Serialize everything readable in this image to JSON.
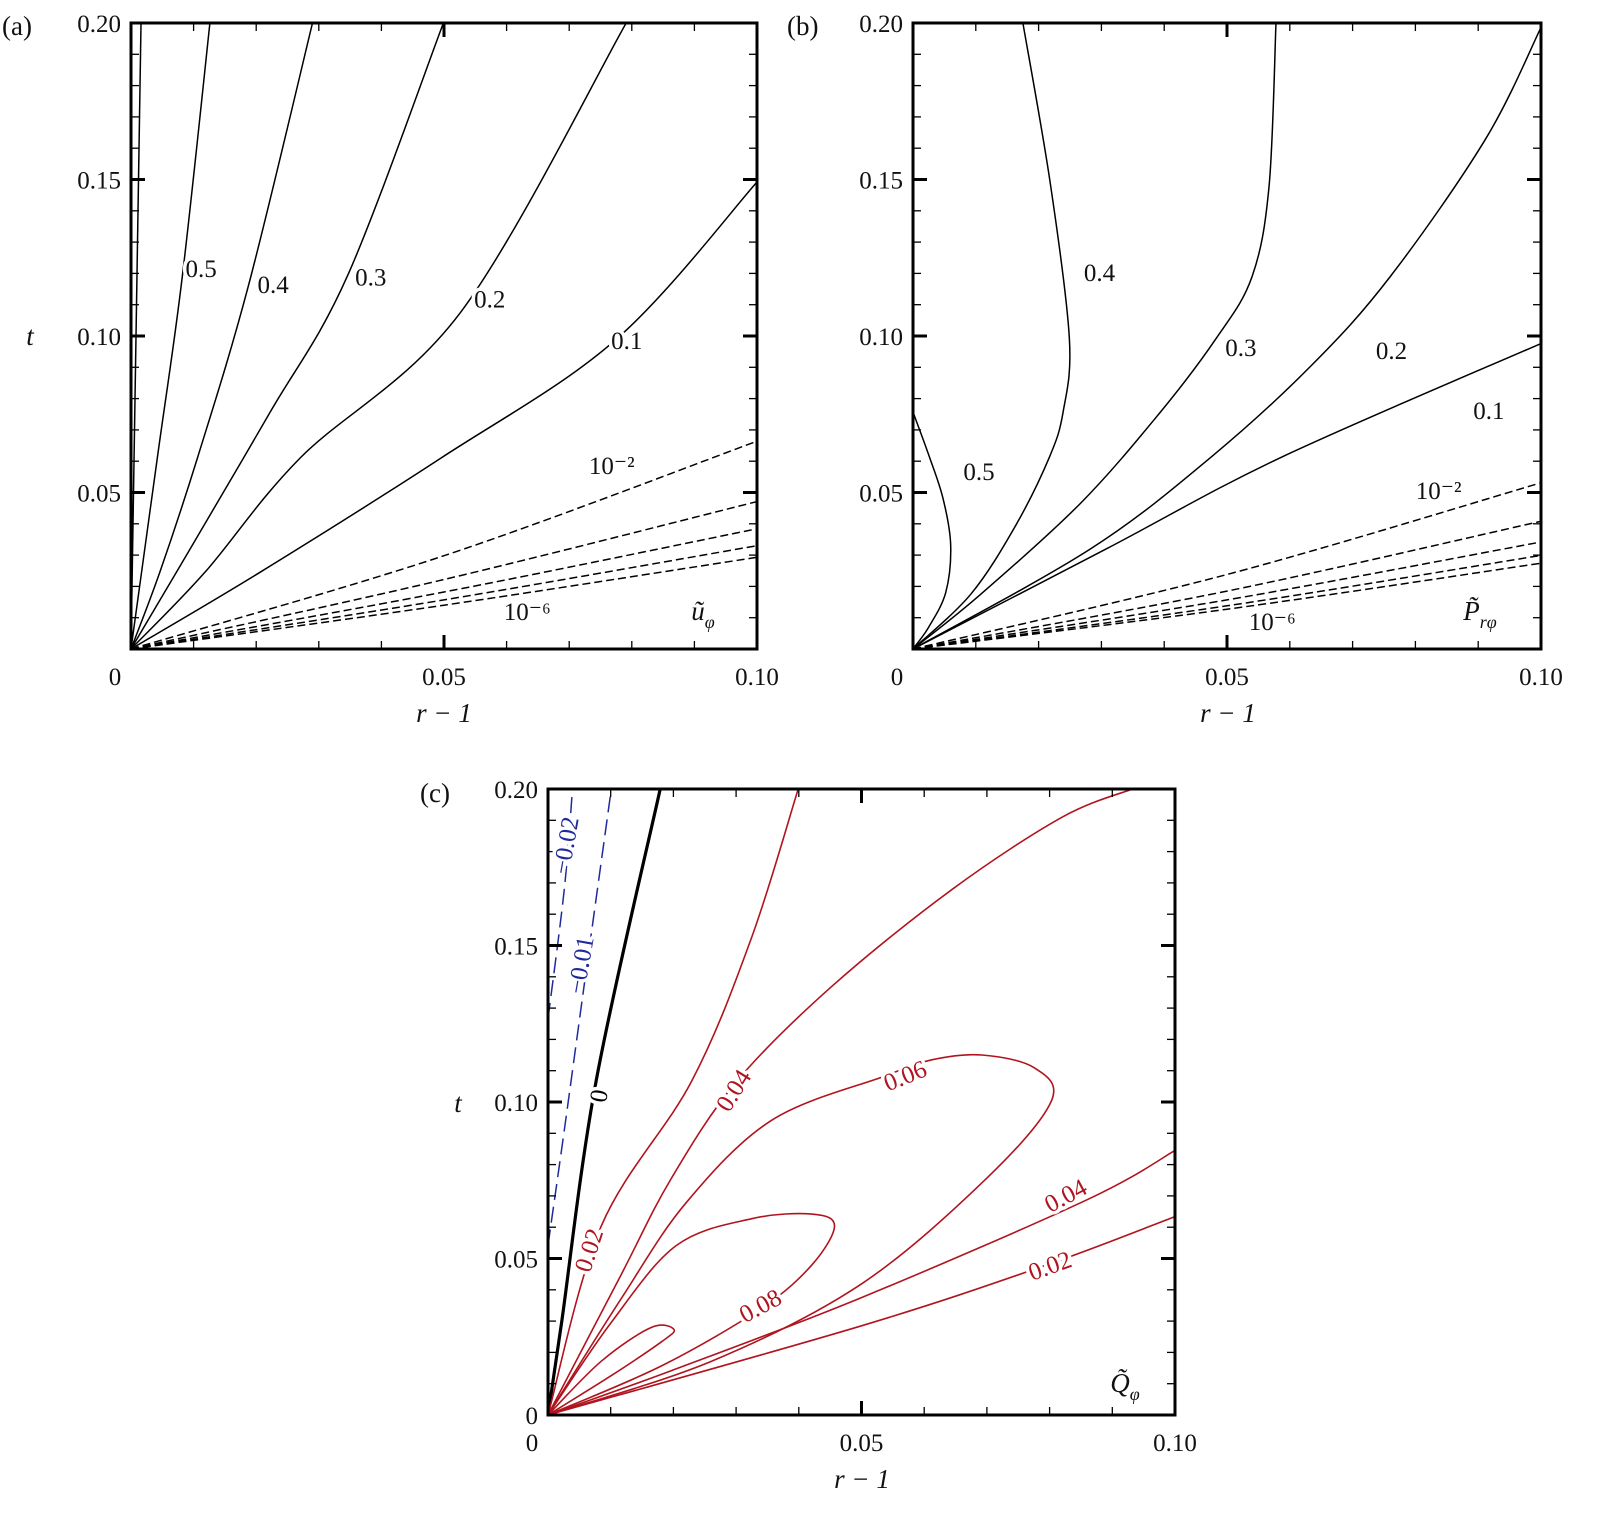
{
  "chart_data": [
    {
      "type": "contour",
      "panel": "(a)",
      "field_label": {
        "base": "ũ",
        "sub": "φ"
      },
      "xlabel": "r − 1",
      "ylabel": "t",
      "xlim": [
        0,
        0.1
      ],
      "ylim": [
        0,
        0.2
      ],
      "xticks": [
        0,
        0.05,
        0.1
      ],
      "xtick_labels": [
        "0",
        "0.05",
        "0.10"
      ],
      "yticks": [
        0.05,
        0.1,
        0.15,
        0.2
      ],
      "ytick_labels": [
        "0.05",
        "0.10",
        "0.15",
        "0.20"
      ],
      "line_color": "#000000",
      "contours": [
        {
          "style": "solid",
          "points": [
            [
              0,
              0
            ],
            [
              0.0016,
              0.2
            ]
          ]
        },
        {
          "style": "solid",
          "points": [
            [
              0,
              0
            ],
            [
              0.0042,
              0.061
            ],
            [
              0.0082,
              0.119
            ],
            [
              0.0126,
              0.2
            ]
          ]
        },
        {
          "style": "solid",
          "points": [
            [
              0,
              0
            ],
            [
              0.0046,
              0.0245
            ],
            [
              0.0106,
              0.061
            ],
            [
              0.0188,
              0.1164
            ],
            [
              0.029,
              0.2
            ]
          ]
        },
        {
          "style": "solid",
          "points": [
            [
              0,
              0
            ],
            [
              0.0094,
              0.0318
            ],
            [
              0.0222,
              0.0756
            ],
            [
              0.0346,
              0.1193
            ],
            [
              0.0499,
              0.2
            ]
          ]
        },
        {
          "style": "solid",
          "points": [
            [
              0,
              0
            ],
            [
              0.0118,
              0.0245
            ],
            [
              0.027,
              0.061
            ],
            [
              0.0527,
              0.1077
            ],
            [
              0.0791,
              0.2
            ]
          ]
        },
        {
          "style": "solid",
          "points": [
            [
              0,
              0
            ],
            [
              0.0206,
              0.0245
            ],
            [
              0.0495,
              0.061
            ],
            [
              0.0775,
              0.0989
            ],
            [
              0.1,
              0.1492
            ]
          ]
        },
        {
          "style": "dashed",
          "points": [
            [
              0,
              0
            ],
            [
              0.05,
              0.0298
            ],
            [
              0.1,
              0.0664
            ]
          ]
        },
        {
          "style": "dashed",
          "points": [
            [
              0,
              0
            ],
            [
              0.05,
              0.0222
            ],
            [
              0.1,
              0.0471
            ]
          ]
        },
        {
          "style": "dashed",
          "points": [
            [
              0,
              0
            ],
            [
              0.05,
              0.0182
            ],
            [
              0.1,
              0.0384
            ]
          ]
        },
        {
          "style": "dashed",
          "points": [
            [
              0,
              0
            ],
            [
              0.05,
              0.0157
            ],
            [
              0.1,
              0.033
            ]
          ]
        },
        {
          "style": "dashed",
          "points": [
            [
              0,
              0
            ],
            [
              0.05,
              0.014
            ],
            [
              0.1,
              0.0293
            ]
          ]
        }
      ],
      "labels": [
        {
          "text": "0.5",
          "x": 0.0112,
          "t": 0.1217
        },
        {
          "text": "0.4",
          "x": 0.0227,
          "t": 0.1166
        },
        {
          "text": "0.3",
          "x": 0.0383,
          "t": 0.119
        },
        {
          "text": "0.2",
          "x": 0.0573,
          "t": 0.112
        },
        {
          "text": "0.1",
          "x": 0.0792,
          "t": 0.0987
        },
        {
          "text": "10⁻²",
          "x": 0.0768,
          "t": 0.0588
        },
        {
          "text": "10⁻⁶",
          "x": 0.0633,
          "t": 0.0121
        }
      ]
    },
    {
      "type": "contour",
      "panel": "(b)",
      "field_label": {
        "base": "P̃",
        "sub": "rφ"
      },
      "xlabel": "r − 1",
      "ylabel": "",
      "xlim": [
        0,
        0.1
      ],
      "ylim": [
        0,
        0.2
      ],
      "xticks": [
        0,
        0.05,
        0.1
      ],
      "xtick_labels": [
        "0",
        "0.05",
        "0.10"
      ],
      "yticks": [
        0.05,
        0.1,
        0.15,
        0.2
      ],
      "ytick_labels": [
        "0.05",
        "0.10",
        "0.15",
        "0.20"
      ],
      "line_color": "#000000",
      "contours": [
        {
          "style": "solid",
          "points": [
            [
              0,
              0.0757
            ],
            [
              0.0025,
              0.062
            ],
            [
              0.0048,
              0.048
            ],
            [
              0.006,
              0.033
            ],
            [
              0.0052,
              0.018
            ],
            [
              0.0025,
              0.007
            ],
            [
              0,
              0
            ]
          ]
        },
        {
          "style": "solid",
          "points": [
            [
              0,
              0
            ],
            [
              0.0092,
              0.0175
            ],
            [
              0.0163,
              0.0393
            ],
            [
              0.0217,
              0.0612
            ],
            [
              0.0239,
              0.0757
            ],
            [
              0.0249,
              0.099
            ],
            [
              0.0219,
              0.1483
            ],
            [
              0.0175,
              0.2
            ]
          ]
        },
        {
          "style": "solid",
          "points": [
            [
              0,
              0
            ],
            [
              0.0108,
              0.0175
            ],
            [
              0.0267,
              0.0466
            ],
            [
              0.0394,
              0.0757
            ],
            [
              0.0482,
              0.099
            ],
            [
              0.054,
              0.119
            ],
            [
              0.0567,
              0.148
            ],
            [
              0.0578,
              0.2
            ]
          ]
        },
        {
          "style": "solid",
          "points": [
            [
              0,
              0
            ],
            [
              0.0283,
              0.032
            ],
            [
              0.0474,
              0.0612
            ],
            [
              0.0633,
              0.0903
            ],
            [
              0.076,
              0.119
            ],
            [
              0.0912,
              0.163
            ],
            [
              0.1,
              0.1986
            ]
          ]
        },
        {
          "style": "solid",
          "points": [
            [
              0,
              0
            ],
            [
              0.0308,
              0.032
            ],
            [
              0.0586,
              0.0612
            ],
            [
              0.1,
              0.0976
            ]
          ]
        },
        {
          "style": "dashed",
          "points": [
            [
              0,
              0
            ],
            [
              0.05,
              0.0238
            ],
            [
              0.1,
              0.0531
            ]
          ]
        },
        {
          "style": "dashed",
          "points": [
            [
              0,
              0
            ],
            [
              0.05,
              0.0185
            ],
            [
              0.1,
              0.0408
            ]
          ]
        },
        {
          "style": "dashed",
          "points": [
            [
              0,
              0
            ],
            [
              0.05,
              0.0157
            ],
            [
              0.1,
              0.0342
            ]
          ]
        },
        {
          "style": "dashed",
          "points": [
            [
              0,
              0
            ],
            [
              0.05,
              0.0138
            ],
            [
              0.1,
              0.0299
            ]
          ]
        },
        {
          "style": "dashed",
          "points": [
            [
              0,
              0
            ],
            [
              0.05,
              0.0127
            ],
            [
              0.1,
              0.0274
            ]
          ]
        }
      ],
      "labels": [
        {
          "text": "0.5",
          "x": 0.0105,
          "t": 0.0569
        },
        {
          "text": "0.4",
          "x": 0.0297,
          "t": 0.1204
        },
        {
          "text": "0.3",
          "x": 0.0522,
          "t": 0.0965
        },
        {
          "text": "0.2",
          "x": 0.0762,
          "t": 0.0955
        },
        {
          "text": "0.1",
          "x": 0.0917,
          "t": 0.0764
        },
        {
          "text": "10⁻²",
          "x": 0.0837,
          "t": 0.0508
        },
        {
          "text": "10⁻⁶",
          "x": 0.0572,
          "t": 0.0089
        }
      ]
    },
    {
      "type": "contour",
      "panel": "(c)",
      "field_label": {
        "base": "Q̃",
        "sub": "φ"
      },
      "xlabel": "r − 1",
      "ylabel": "t",
      "xlim": [
        0,
        0.1
      ],
      "ylim": [
        0,
        0.2
      ],
      "xticks": [
        0,
        0.05,
        0.1
      ],
      "xtick_labels": [
        "0",
        "0.05",
        "0.10"
      ],
      "yticks": [
        0,
        0.05,
        0.1,
        0.15,
        0.2
      ],
      "ytick_labels": [
        "0",
        "0.05",
        "0.10",
        "0.15",
        "0.20"
      ],
      "positive_color": "#b0141e",
      "negative_color": "#1f2a9c",
      "zero_color": "#000000",
      "contours": [
        {
          "sign": "negative",
          "style": "dashed",
          "points": [
            [
              0,
              0.1266
            ],
            [
              0.0026,
              0.168
            ],
            [
              0.0039,
              0.2
            ]
          ]
        },
        {
          "sign": "negative",
          "style": "dashed",
          "points": [
            [
              0,
              0.0542
            ],
            [
              0.0026,
              0.091
            ],
            [
              0.0065,
              0.148
            ],
            [
              0.0101,
              0.2
            ]
          ]
        },
        {
          "sign": "zero",
          "style": "bold",
          "points": [
            [
              0,
              0
            ],
            [
              0.0022,
              0.03
            ],
            [
              0.0077,
              0.107
            ],
            [
              0.0179,
              0.2
            ]
          ]
        },
        {
          "sign": "positive",
          "style": "solid",
          "points": [
            [
              0,
              0
            ],
            [
              0.0085,
              0.0604
            ],
            [
              0.0229,
              0.1066
            ],
            [
              0.0325,
              0.1527
            ],
            [
              0.0399,
              0.2
            ]
          ]
        },
        {
          "sign": "positive",
          "style": "solid",
          "points": [
            [
              0,
              0
            ],
            [
              0.0117,
              0.045
            ],
            [
              0.0197,
              0.0757
            ],
            [
              0.0301,
              0.1066
            ],
            [
              0.0453,
              0.137
            ],
            [
              0.0645,
              0.168
            ],
            [
              0.082,
              0.191
            ],
            [
              0.0932,
              0.2
            ]
          ]
        },
        {
          "sign": "positive",
          "style": "solid",
          "points": [
            [
              0,
              0
            ],
            [
              0.0117,
              0.0373
            ],
            [
              0.0221,
              0.068
            ],
            [
              0.0357,
              0.0942
            ],
            [
              0.0533,
              0.108
            ],
            [
              0.0613,
              0.1135
            ],
            [
              0.0692,
              0.115
            ],
            [
              0.0775,
              0.111
            ],
            [
              0.0803,
              0.1004
            ],
            [
              0.07,
              0.0757
            ],
            [
              0.05,
              0.0419
            ],
            [
              0.0261,
              0.0172
            ],
            [
              0,
              0
            ]
          ]
        },
        {
          "sign": "positive",
          "style": "solid",
          "points": [
            [
              0,
              0
            ],
            [
              0.0101,
              0.0296
            ],
            [
              0.0205,
              0.0542
            ],
            [
              0.0325,
              0.0627
            ],
            [
              0.0421,
              0.0642
            ],
            [
              0.0457,
              0.0604
            ],
            [
              0.0421,
              0.048
            ],
            [
              0.0341,
              0.0342
            ],
            [
              0.0181,
              0.0157
            ],
            [
              0,
              0
            ]
          ]
        },
        {
          "sign": "positive",
          "style": "solid",
          "points": [
            [
              0,
              0
            ],
            [
              0.0085,
              0.0172
            ],
            [
              0.0165,
              0.028
            ],
            [
              0.0201,
              0.0273
            ],
            [
              0.0181,
              0.0234
            ],
            [
              0.0101,
              0.0126
            ],
            [
              0,
              0
            ]
          ]
        },
        {
          "sign": "positive",
          "style": "solid",
          "points": [
            [
              0,
              0
            ],
            [
              0.0197,
              0.0142
            ],
            [
              0.05,
              0.0375
            ],
            [
              0.086,
              0.0688
            ],
            [
              0.1,
              0.0845
            ]
          ]
        },
        {
          "sign": "positive",
          "style": "solid",
          "points": [
            [
              0,
              0
            ],
            [
              0.05,
              0.0285
            ],
            [
              0.0796,
              0.048
            ],
            [
              0.1,
              0.0634
            ]
          ]
        }
      ],
      "labels": [
        {
          "text": "0",
          "x": 0.008,
          "t": 0.102,
          "sign": "zero"
        },
        {
          "text": "−0.01",
          "x": 0.0051,
          "t": 0.1438,
          "sign": "negative"
        },
        {
          "text": "−0.02",
          "x": 0.0027,
          "t": 0.182,
          "sign": "negative"
        },
        {
          "text": "0.04",
          "x": 0.0295,
          "t": 0.1038,
          "sign": "positive"
        },
        {
          "text": "0.06",
          "x": 0.0569,
          "t": 0.1086,
          "sign": "positive"
        },
        {
          "text": "0.02",
          "x": 0.0064,
          "t": 0.0527,
          "sign": "positive"
        },
        {
          "text": "0.08",
          "x": 0.0338,
          "t": 0.0351,
          "sign": "positive"
        },
        {
          "text": "0.04",
          "x": 0.0825,
          "t": 0.0703,
          "sign": "positive"
        },
        {
          "text": "0.02",
          "x": 0.08,
          "t": 0.0479,
          "sign": "positive"
        }
      ]
    }
  ]
}
